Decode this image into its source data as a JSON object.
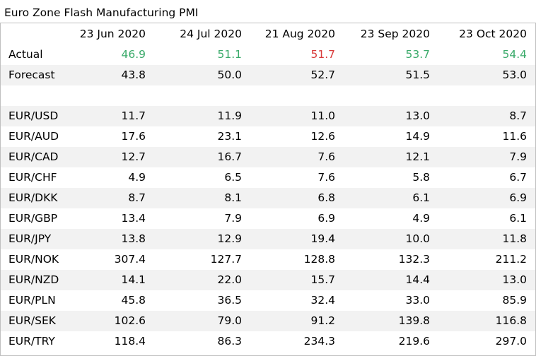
{
  "title": "Euro Zone Flash Manufacturing PMI",
  "colors": {
    "beat": "#3aaa6a",
    "miss": "#d93a3a",
    "stripe": "#f2f2f2"
  },
  "chart_data": {
    "type": "table",
    "title": "Euro Zone Flash Manufacturing PMI",
    "columns": [
      "",
      "23 Jun 2020",
      "24 Jul 2020",
      "21 Aug 2020",
      "23 Sep 2020",
      "23 Oct 2020"
    ],
    "rows": [
      {
        "label": "Actual",
        "values": [
          "46.9",
          "51.1",
          "51.7",
          "53.7",
          "54.4"
        ],
        "status": [
          "up",
          "up",
          "down",
          "up",
          "up"
        ]
      },
      {
        "label": "Forecast",
        "values": [
          "43.8",
          "50.0",
          "52.7",
          "51.5",
          "53.0"
        ]
      },
      {
        "label": "",
        "values": [
          "",
          "",
          "",
          "",
          ""
        ]
      },
      {
        "label": "EUR/USD",
        "values": [
          "11.7",
          "11.9",
          "11.0",
          "13.0",
          "8.7"
        ]
      },
      {
        "label": "EUR/AUD",
        "values": [
          "17.6",
          "23.1",
          "12.6",
          "14.9",
          "11.6"
        ]
      },
      {
        "label": "EUR/CAD",
        "values": [
          "12.7",
          "16.7",
          "7.6",
          "12.1",
          "7.9"
        ]
      },
      {
        "label": "EUR/CHF",
        "values": [
          "4.9",
          "6.5",
          "7.6",
          "5.8",
          "6.7"
        ]
      },
      {
        "label": "EUR/DKK",
        "values": [
          "8.7",
          "8.1",
          "6.8",
          "6.1",
          "6.9"
        ]
      },
      {
        "label": "EUR/GBP",
        "values": [
          "13.4",
          "7.9",
          "6.9",
          "4.9",
          "6.1"
        ]
      },
      {
        "label": "EUR/JPY",
        "values": [
          "13.8",
          "12.9",
          "19.4",
          "10.0",
          "11.8"
        ]
      },
      {
        "label": "EUR/NOK",
        "values": [
          "307.4",
          "127.7",
          "128.8",
          "132.3",
          "211.2"
        ]
      },
      {
        "label": "EUR/NZD",
        "values": [
          "14.1",
          "22.0",
          "15.7",
          "14.4",
          "13.0"
        ]
      },
      {
        "label": "EUR/PLN",
        "values": [
          "45.8",
          "36.5",
          "32.4",
          "33.0",
          "85.9"
        ]
      },
      {
        "label": "EUR/SEK",
        "values": [
          "102.6",
          "79.0",
          "91.2",
          "139.8",
          "116.8"
        ]
      },
      {
        "label": "EUR/TRY",
        "values": [
          "118.4",
          "86.3",
          "234.3",
          "219.6",
          "297.0"
        ]
      }
    ]
  }
}
